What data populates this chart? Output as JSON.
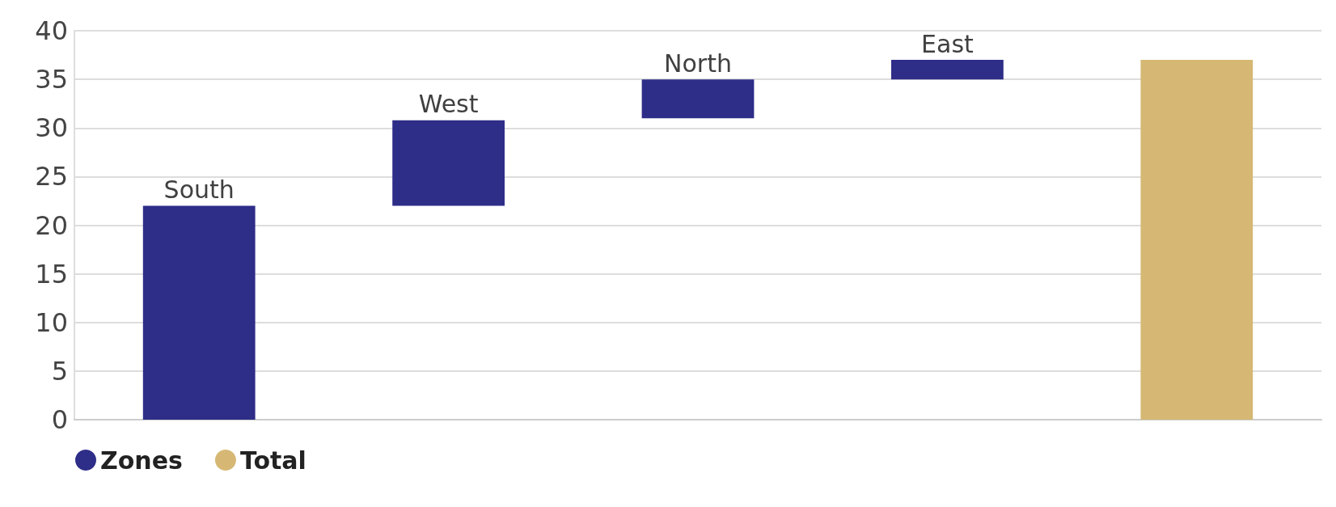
{
  "chart_data": {
    "type": "bar",
    "categories": [
      "South",
      "West",
      "North",
      "East",
      null
    ],
    "series": [
      {
        "name": "Zones",
        "color": "#2e2d88",
        "values": [
          22,
          8.8,
          4,
          2,
          null
        ],
        "base": [
          0,
          22,
          31,
          35,
          null
        ]
      },
      {
        "name": "Total",
        "color": "#d6b874",
        "values": [
          null,
          null,
          null,
          null,
          37
        ],
        "base": [
          null,
          null,
          null,
          null,
          0
        ]
      }
    ],
    "ylim": [
      0,
      40
    ],
    "yticks": [
      0,
      5,
      10,
      15,
      20,
      25,
      30,
      35,
      40
    ],
    "grid": "y",
    "legend": "bottom left"
  }
}
